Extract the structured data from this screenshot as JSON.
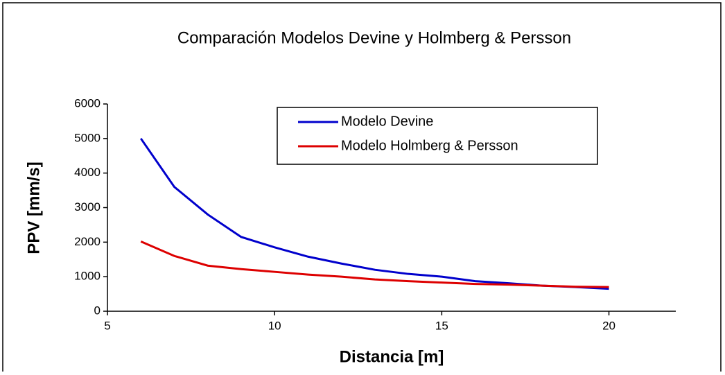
{
  "chart_data": {
    "type": "line",
    "title": "Comparación Modelos Devine y Holmberg & Persson",
    "x_label": "Distancia [m]",
    "y_label": "PPV [mm/s]",
    "x": [
      6,
      7,
      8,
      9,
      10,
      11,
      12,
      13,
      14,
      15,
      16,
      17,
      18,
      19,
      20
    ],
    "series": [
      {
        "name": "Modelo Devine",
        "color": "#0000cc",
        "values": [
          5000,
          3600,
          2800,
          2150,
          1850,
          1580,
          1380,
          1200,
          1080,
          1000,
          870,
          810,
          740,
          700,
          650
        ]
      },
      {
        "name": "Modelo Holmberg & Persson",
        "color": "#dd0000",
        "values": [
          2020,
          1600,
          1320,
          1220,
          1140,
          1060,
          1000,
          920,
          870,
          830,
          790,
          770,
          740,
          710,
          700
        ]
      }
    ],
    "xlim": [
      5,
      22
    ],
    "xticks": [
      5,
      10,
      15,
      20
    ],
    "ylim": [
      0,
      6000
    ],
    "yticks": [
      0,
      1000,
      2000,
      3000,
      4000,
      5000,
      6000
    ],
    "grid": false,
    "legend": "top-center"
  }
}
